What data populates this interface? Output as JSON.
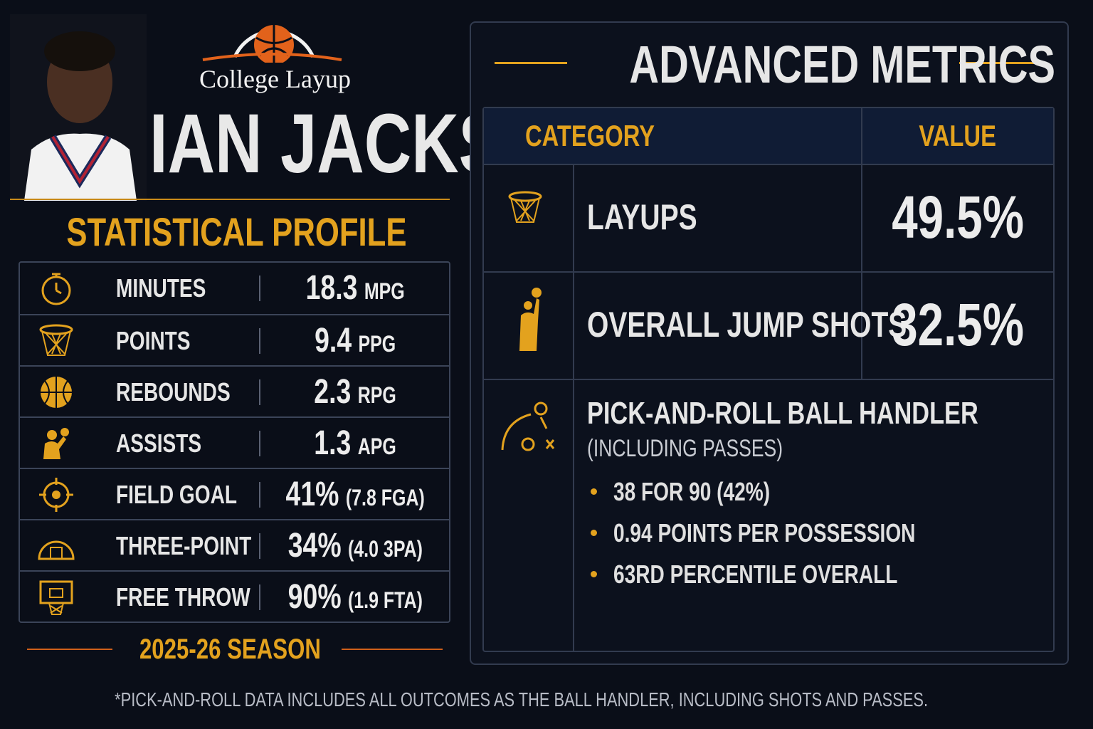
{
  "brand": "College Layup",
  "player_name": "IAN JACKSON",
  "profile": {
    "title": "STATISTICAL PROFILE",
    "rows": [
      {
        "label": "MINUTES",
        "value": "18.3",
        "unit": "MPG"
      },
      {
        "label": "POINTS",
        "value": "9.4",
        "unit": "PPG"
      },
      {
        "label": "REBOUNDS",
        "value": "2.3",
        "unit": "RPG"
      },
      {
        "label": "ASSISTS",
        "value": "1.3",
        "unit": "APG"
      },
      {
        "label": "FIELD GOAL",
        "value": "41%",
        "unit": "(7.8 FGA)"
      },
      {
        "label": "THREE-POINT",
        "value": "34%",
        "unit": "(4.0 3PA)"
      },
      {
        "label": "FREE THROW",
        "value": "90%",
        "unit": "(1.9 FTA)"
      }
    ],
    "season": "2025-26 SEASON"
  },
  "metrics": {
    "title": "ADVANCED METRICS",
    "header": [
      "CATEGORY",
      "VALUE"
    ],
    "rows": [
      {
        "label": "LAYUPS",
        "value": "49.5%"
      },
      {
        "label": "OVERALL JUMP SHOTS",
        "value": "32.5%"
      }
    ],
    "pnr": {
      "title": "PICK-AND-ROLL BALL HANDLER",
      "subtitle": "(INCLUDING PASSES)",
      "bullets": [
        "38 FOR 90 (42%)",
        "0.94 POINTS PER POSSESSION",
        "63RD PERCENTILE OVERALL"
      ]
    }
  },
  "footnote": "*PICK-AND-ROLL DATA INCLUDES ALL OUTCOMES AS THE BALL HANDLER, INCLUDING SHOTS AND PASSES."
}
